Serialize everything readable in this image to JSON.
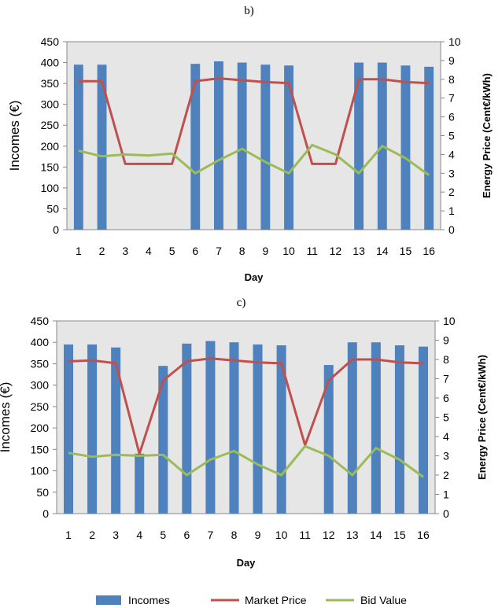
{
  "chart_data": [
    {
      "type": "bar",
      "panel_label": "b)",
      "categories": [
        "1",
        "2",
        "3",
        "4",
        "5",
        "6",
        "7",
        "8",
        "9",
        "10",
        "11",
        "12",
        "13",
        "14",
        "15",
        "16"
      ],
      "series": [
        {
          "name": "Incomes",
          "type": "bar",
          "axis": "left",
          "color": "#4f81bd",
          "values": [
            395,
            395,
            0,
            0,
            0,
            397,
            403,
            400,
            395,
            393,
            0,
            0,
            400,
            400,
            393,
            390
          ]
        },
        {
          "name": "Market Price",
          "type": "line",
          "axis": "right",
          "color": "#c0504d",
          "values": [
            7.9,
            7.9,
            3.5,
            3.5,
            3.5,
            7.9,
            8.05,
            7.95,
            7.85,
            7.8,
            3.5,
            3.5,
            8.0,
            8.0,
            7.85,
            7.8
          ]
        },
        {
          "name": "Bid Value",
          "type": "line",
          "axis": "right",
          "color": "#9bbb59",
          "values": [
            4.2,
            3.9,
            4.0,
            3.95,
            4.05,
            3.0,
            3.7,
            4.3,
            3.6,
            3.0,
            4.5,
            4.0,
            3.0,
            4.45,
            3.8,
            2.9
          ]
        }
      ],
      "xlabel": "Day",
      "ylabel": "Incomes (€)",
      "y2label": "Energy Price (Cent€/kWh)",
      "ylim": [
        0,
        450
      ],
      "yticks": [
        "0",
        "50",
        "100",
        "150",
        "200",
        "250",
        "300",
        "350",
        "400",
        "450"
      ],
      "y2lim": [
        0,
        10
      ],
      "y2ticks": [
        "0",
        "1",
        "2",
        "3",
        "4",
        "5",
        "6",
        "7",
        "8",
        "9",
        "10"
      ],
      "grid": false,
      "plot_background": "#e6e6e6"
    },
    {
      "type": "bar",
      "panel_label": "c)",
      "categories": [
        "1",
        "2",
        "3",
        "4",
        "5",
        "6",
        "7",
        "8",
        "9",
        "10",
        "11",
        "12",
        "13",
        "14",
        "15",
        "16"
      ],
      "series": [
        {
          "name": "Incomes",
          "type": "bar",
          "axis": "left",
          "color": "#4f81bd",
          "values": [
            395,
            395,
            388,
            140,
            345,
            397,
            403,
            400,
            395,
            393,
            0,
            347,
            400,
            400,
            393,
            390
          ]
        },
        {
          "name": "Market Price",
          "type": "line",
          "axis": "right",
          "color": "#c0504d",
          "values": [
            7.9,
            7.95,
            7.8,
            3.1,
            6.9,
            7.9,
            8.05,
            7.95,
            7.85,
            7.8,
            3.55,
            6.9,
            8.0,
            8.0,
            7.85,
            7.8
          ]
        },
        {
          "name": "Bid Value",
          "type": "line",
          "axis": "right",
          "color": "#9bbb59",
          "values": [
            3.15,
            2.95,
            3.05,
            3.0,
            3.05,
            2.0,
            2.8,
            3.25,
            2.55,
            2.0,
            3.5,
            3.0,
            2.0,
            3.4,
            2.8,
            1.9
          ]
        }
      ],
      "xlabel": "Day",
      "ylabel": "Incomes (€)",
      "y2label": "Energy Price (Cent€/kWh)",
      "ylim": [
        0,
        450
      ],
      "yticks": [
        "0",
        "50",
        "100",
        "150",
        "200",
        "250",
        "300",
        "350",
        "400",
        "450"
      ],
      "y2lim": [
        0,
        10
      ],
      "y2ticks": [
        "0",
        "1",
        "2",
        "3",
        "4",
        "5",
        "6",
        "7",
        "8",
        "9",
        "10"
      ],
      "grid": false,
      "plot_background": "#e6e6e6"
    }
  ],
  "legend": {
    "placement": "bottom-center",
    "items": [
      {
        "label": "Incomes",
        "kind": "bar",
        "color": "#4f81bd"
      },
      {
        "label": "Market Price",
        "kind": "line",
        "color": "#c0504d"
      },
      {
        "label": "Bid Value",
        "kind": "line",
        "color": "#9bbb59"
      }
    ]
  }
}
